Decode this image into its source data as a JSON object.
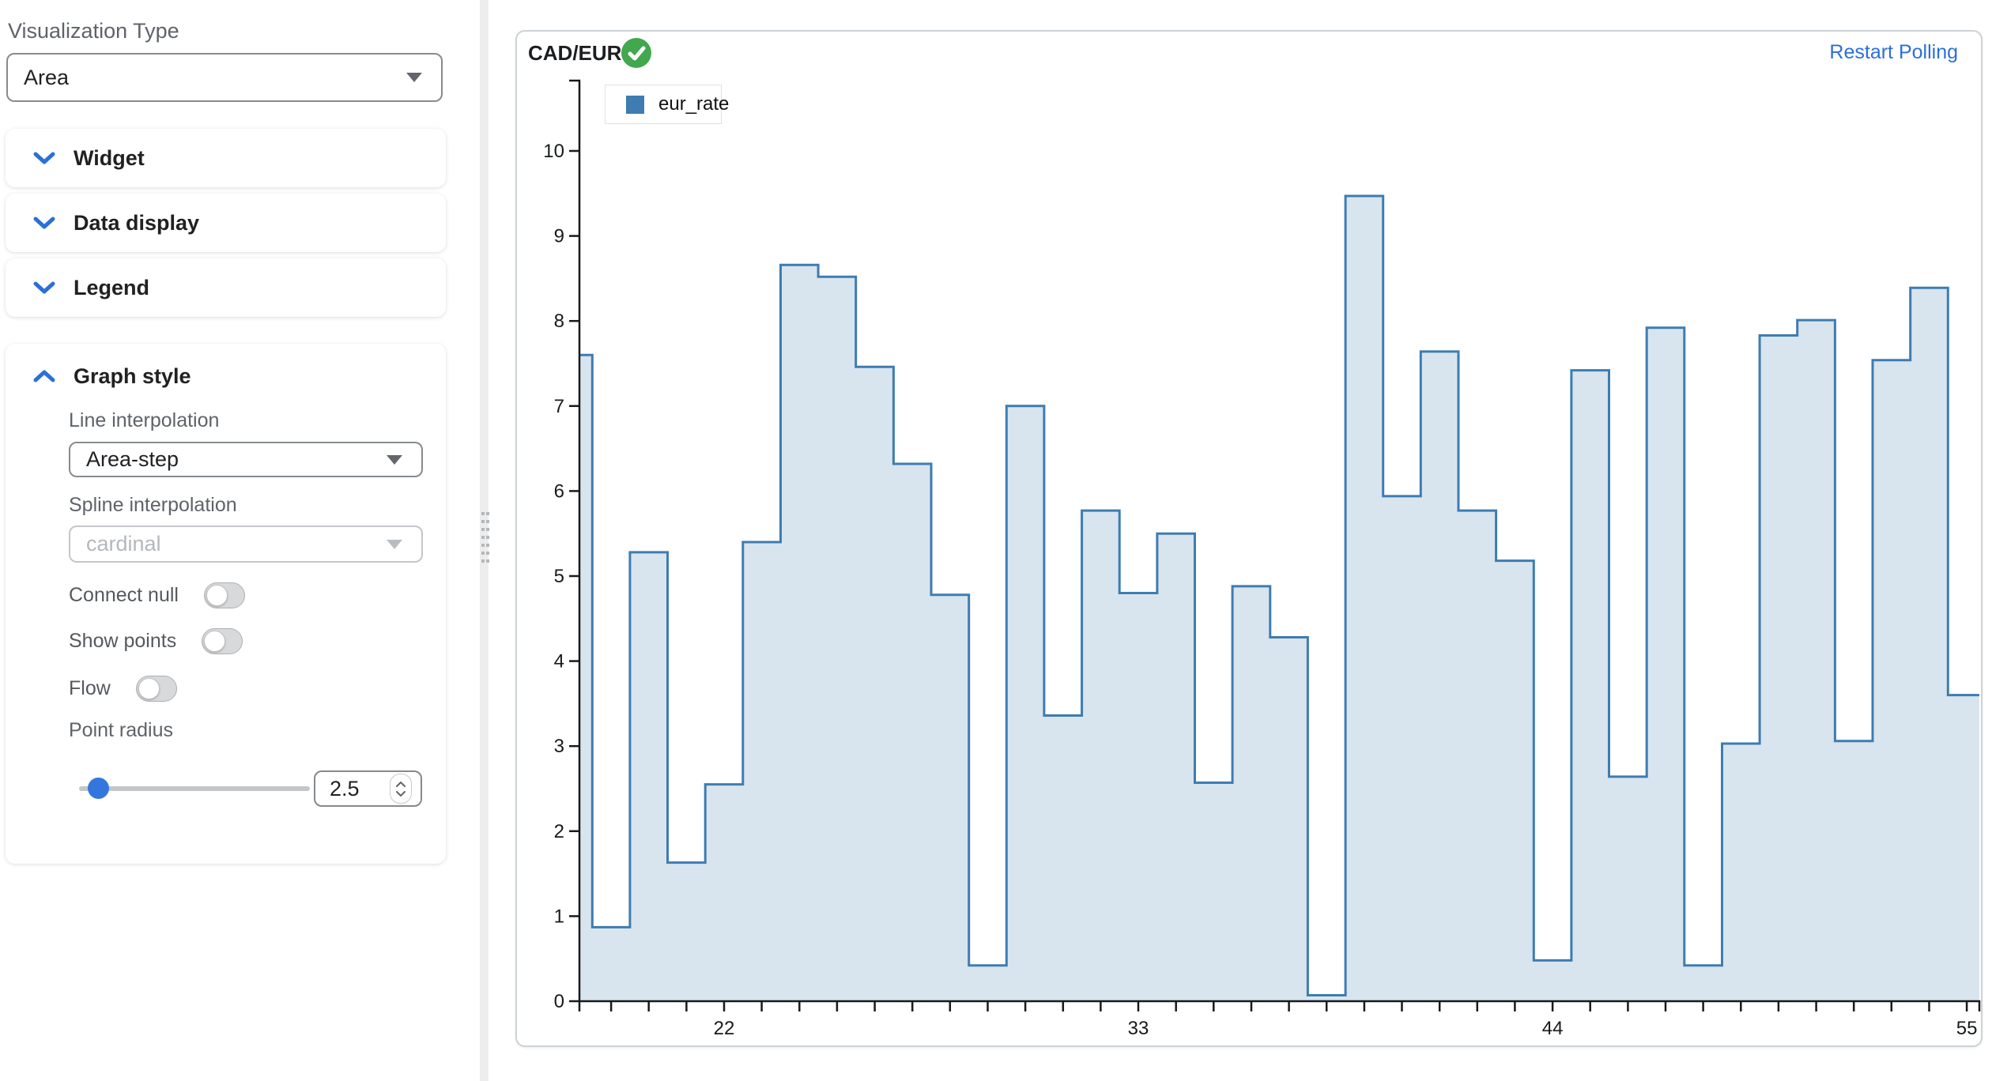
{
  "sidebar": {
    "visualization_type_label": "Visualization Type",
    "visualization_type_value": "Area",
    "sections": [
      {
        "label": "Widget",
        "expanded": false
      },
      {
        "label": "Data display",
        "expanded": false
      },
      {
        "label": "Legend",
        "expanded": false
      }
    ],
    "graph_style": {
      "label": "Graph style",
      "expanded": true,
      "line_interpolation_label": "Line interpolation",
      "line_interpolation_value": "Area-step",
      "spline_interpolation_label": "Spline interpolation",
      "spline_interpolation_value": "cardinal",
      "spline_interpolation_disabled": true,
      "toggles": [
        {
          "label": "Connect null",
          "on": false
        },
        {
          "label": "Show points",
          "on": false
        },
        {
          "label": "Flow",
          "on": false
        }
      ],
      "point_radius_label": "Point radius",
      "point_radius_value": "2.5"
    }
  },
  "panel": {
    "title": "CAD/EUR",
    "status_icon": "check-circle",
    "status_color": "#41a84d",
    "restart_label": "Restart Polling",
    "link_color": "#2a6fdb"
  },
  "chart_data": {
    "type": "area",
    "interpolation": "area-step",
    "title": "CAD/EUR",
    "legend_entries": [
      "eur_rate"
    ],
    "legend_position": "inset-top-left",
    "grid": false,
    "xlabel": "",
    "ylabel": "",
    "ylim": [
      0,
      10
    ],
    "y_ticks": [
      0,
      1,
      2,
      3,
      4,
      5,
      6,
      7,
      8,
      9,
      10
    ],
    "x_tick_labels": [
      22,
      33,
      44,
      55
    ],
    "x": [
      18,
      19,
      20,
      21,
      22,
      23,
      24,
      25,
      26,
      27,
      28,
      29,
      30,
      31,
      32,
      33,
      34,
      35,
      36,
      37,
      38,
      39,
      40,
      41,
      42,
      43,
      44,
      45,
      46,
      47,
      48,
      49,
      50,
      51,
      52,
      53,
      54,
      55
    ],
    "series": [
      {
        "name": "eur_rate",
        "values": [
          7.6,
          0.87,
          5.28,
          1.63,
          2.55,
          5.4,
          8.66,
          8.52,
          7.46,
          6.32,
          4.78,
          0.42,
          7.0,
          3.36,
          5.77,
          4.8,
          5.5,
          2.57,
          4.88,
          4.28,
          0.07,
          9.47,
          5.94,
          7.64,
          5.77,
          5.18,
          0.48,
          7.42,
          2.64,
          7.92,
          0.42,
          3.03,
          7.83,
          8.01,
          3.06,
          7.54,
          8.39,
          3.6
        ]
      }
    ],
    "colors": {
      "line": "#3e7cb1",
      "fill": "rgba(62,124,177,0.2)",
      "axis": "#17191b"
    }
  }
}
